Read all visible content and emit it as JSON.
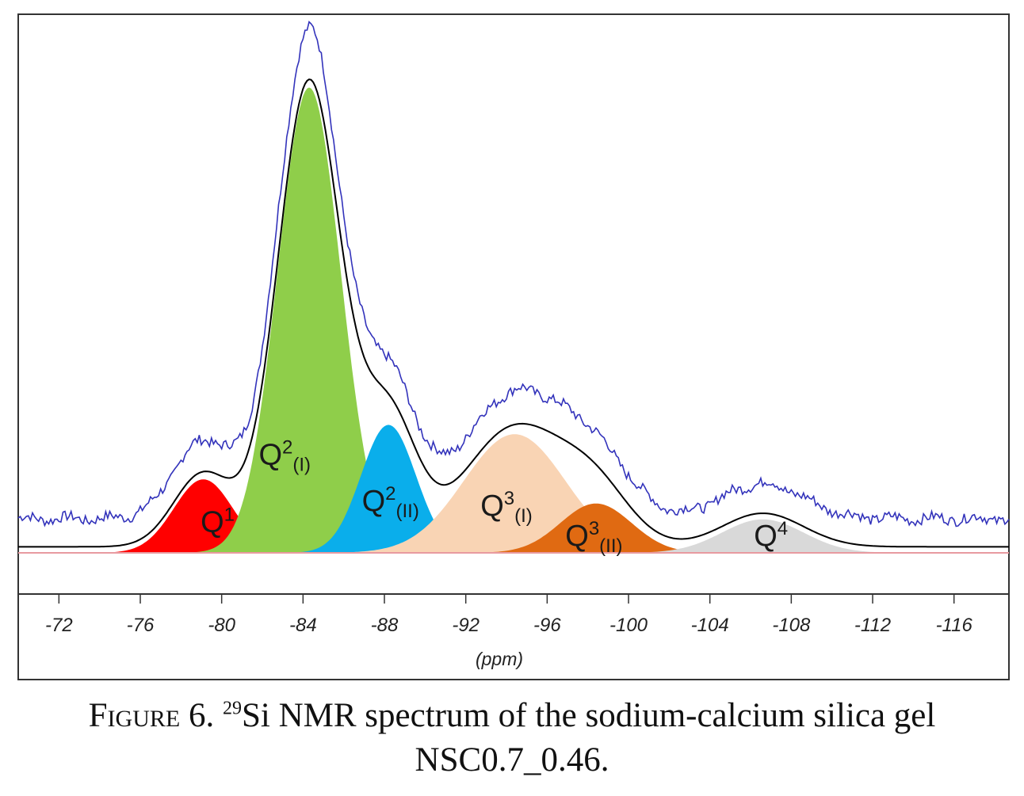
{
  "chart_data": {
    "type": "area",
    "xlabel": "(ppm)",
    "x_ticks": [
      -72,
      -76,
      -80,
      -84,
      -88,
      -92,
      -96,
      -100,
      -104,
      -108,
      -112,
      -116
    ],
    "xlim": [
      -70,
      -118.7
    ],
    "x_reversed": true,
    "ylim": [
      0,
      1.12
    ],
    "grid": false,
    "components": [
      {
        "name": "Q",
        "sup": "1",
        "sub": "",
        "center": -79.1,
        "height": 0.158,
        "sigma": 1.45,
        "color": "#ff0000",
        "label_x": -79.8,
        "label_y": 0.045
      },
      {
        "name": "Q",
        "sup": "2",
        "sub": "(I)",
        "center": -84.3,
        "height": 1.0,
        "sigma": 1.55,
        "color": "#8fce4a",
        "label_x": -83.1,
        "label_y": 0.19
      },
      {
        "name": "Q",
        "sup": "2",
        "sub": "(II)",
        "center": -88.2,
        "height": 0.275,
        "sigma": 1.35,
        "color": "#0aaeeb",
        "label_x": -88.3,
        "label_y": 0.09
      },
      {
        "name": "Q",
        "sup": "3",
        "sub": "(I)",
        "center": -94.4,
        "height": 0.255,
        "sigma": 2.5,
        "color": "#f9d4b4",
        "label_x": -94.0,
        "label_y": 0.08
      },
      {
        "name": "Q",
        "sup": "3",
        "sub": "(II)",
        "center": -98.4,
        "height": 0.106,
        "sigma": 1.75,
        "color": "#e06a12",
        "label_x": -98.3,
        "label_y": 0.015
      },
      {
        "name": "Q",
        "sup": "4",
        "sub": "",
        "center": -106.6,
        "height": 0.072,
        "sigma": 2.0,
        "color": "#d9d9d9",
        "label_x": -107.0,
        "label_y": 0.015
      }
    ],
    "fit_color": "#000000",
    "experimental_color": "#3333bb",
    "experimental_offset": 0.06,
    "baseline_color": "#e89aa0"
  },
  "caption": {
    "prefix": "Figure 6.",
    "superscript": "29",
    "line1": "Si NMR spectrum of the sodium-calcium silica gel",
    "line2": "NSC0.7_0.46."
  }
}
